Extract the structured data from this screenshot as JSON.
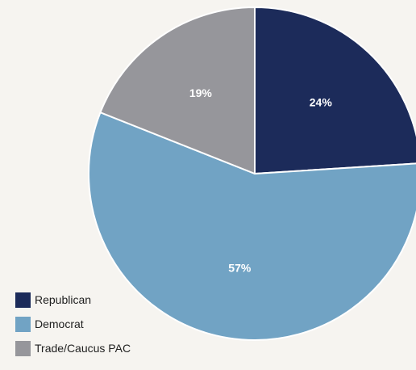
{
  "chart_data": {
    "type": "pie",
    "title": "",
    "start_angle_deg": 0,
    "direction": "clockwise",
    "slices": [
      {
        "name": "Republican",
        "value": 24,
        "label": "24%",
        "color": "#1c2b5a"
      },
      {
        "name": "Democrat",
        "value": 57,
        "label": "57%",
        "color": "#71a3c4"
      },
      {
        "name": "Trade/Caucus PAC",
        "value": 19,
        "label": "19%",
        "color": "#96969b"
      }
    ],
    "legend_position": "bottom-left"
  },
  "legend": {
    "items": [
      {
        "label": "Republican",
        "color": "#1c2b5a"
      },
      {
        "label": "Democrat",
        "color": "#71a3c4"
      },
      {
        "label": "Trade/Caucus PAC",
        "color": "#96969b"
      }
    ]
  }
}
